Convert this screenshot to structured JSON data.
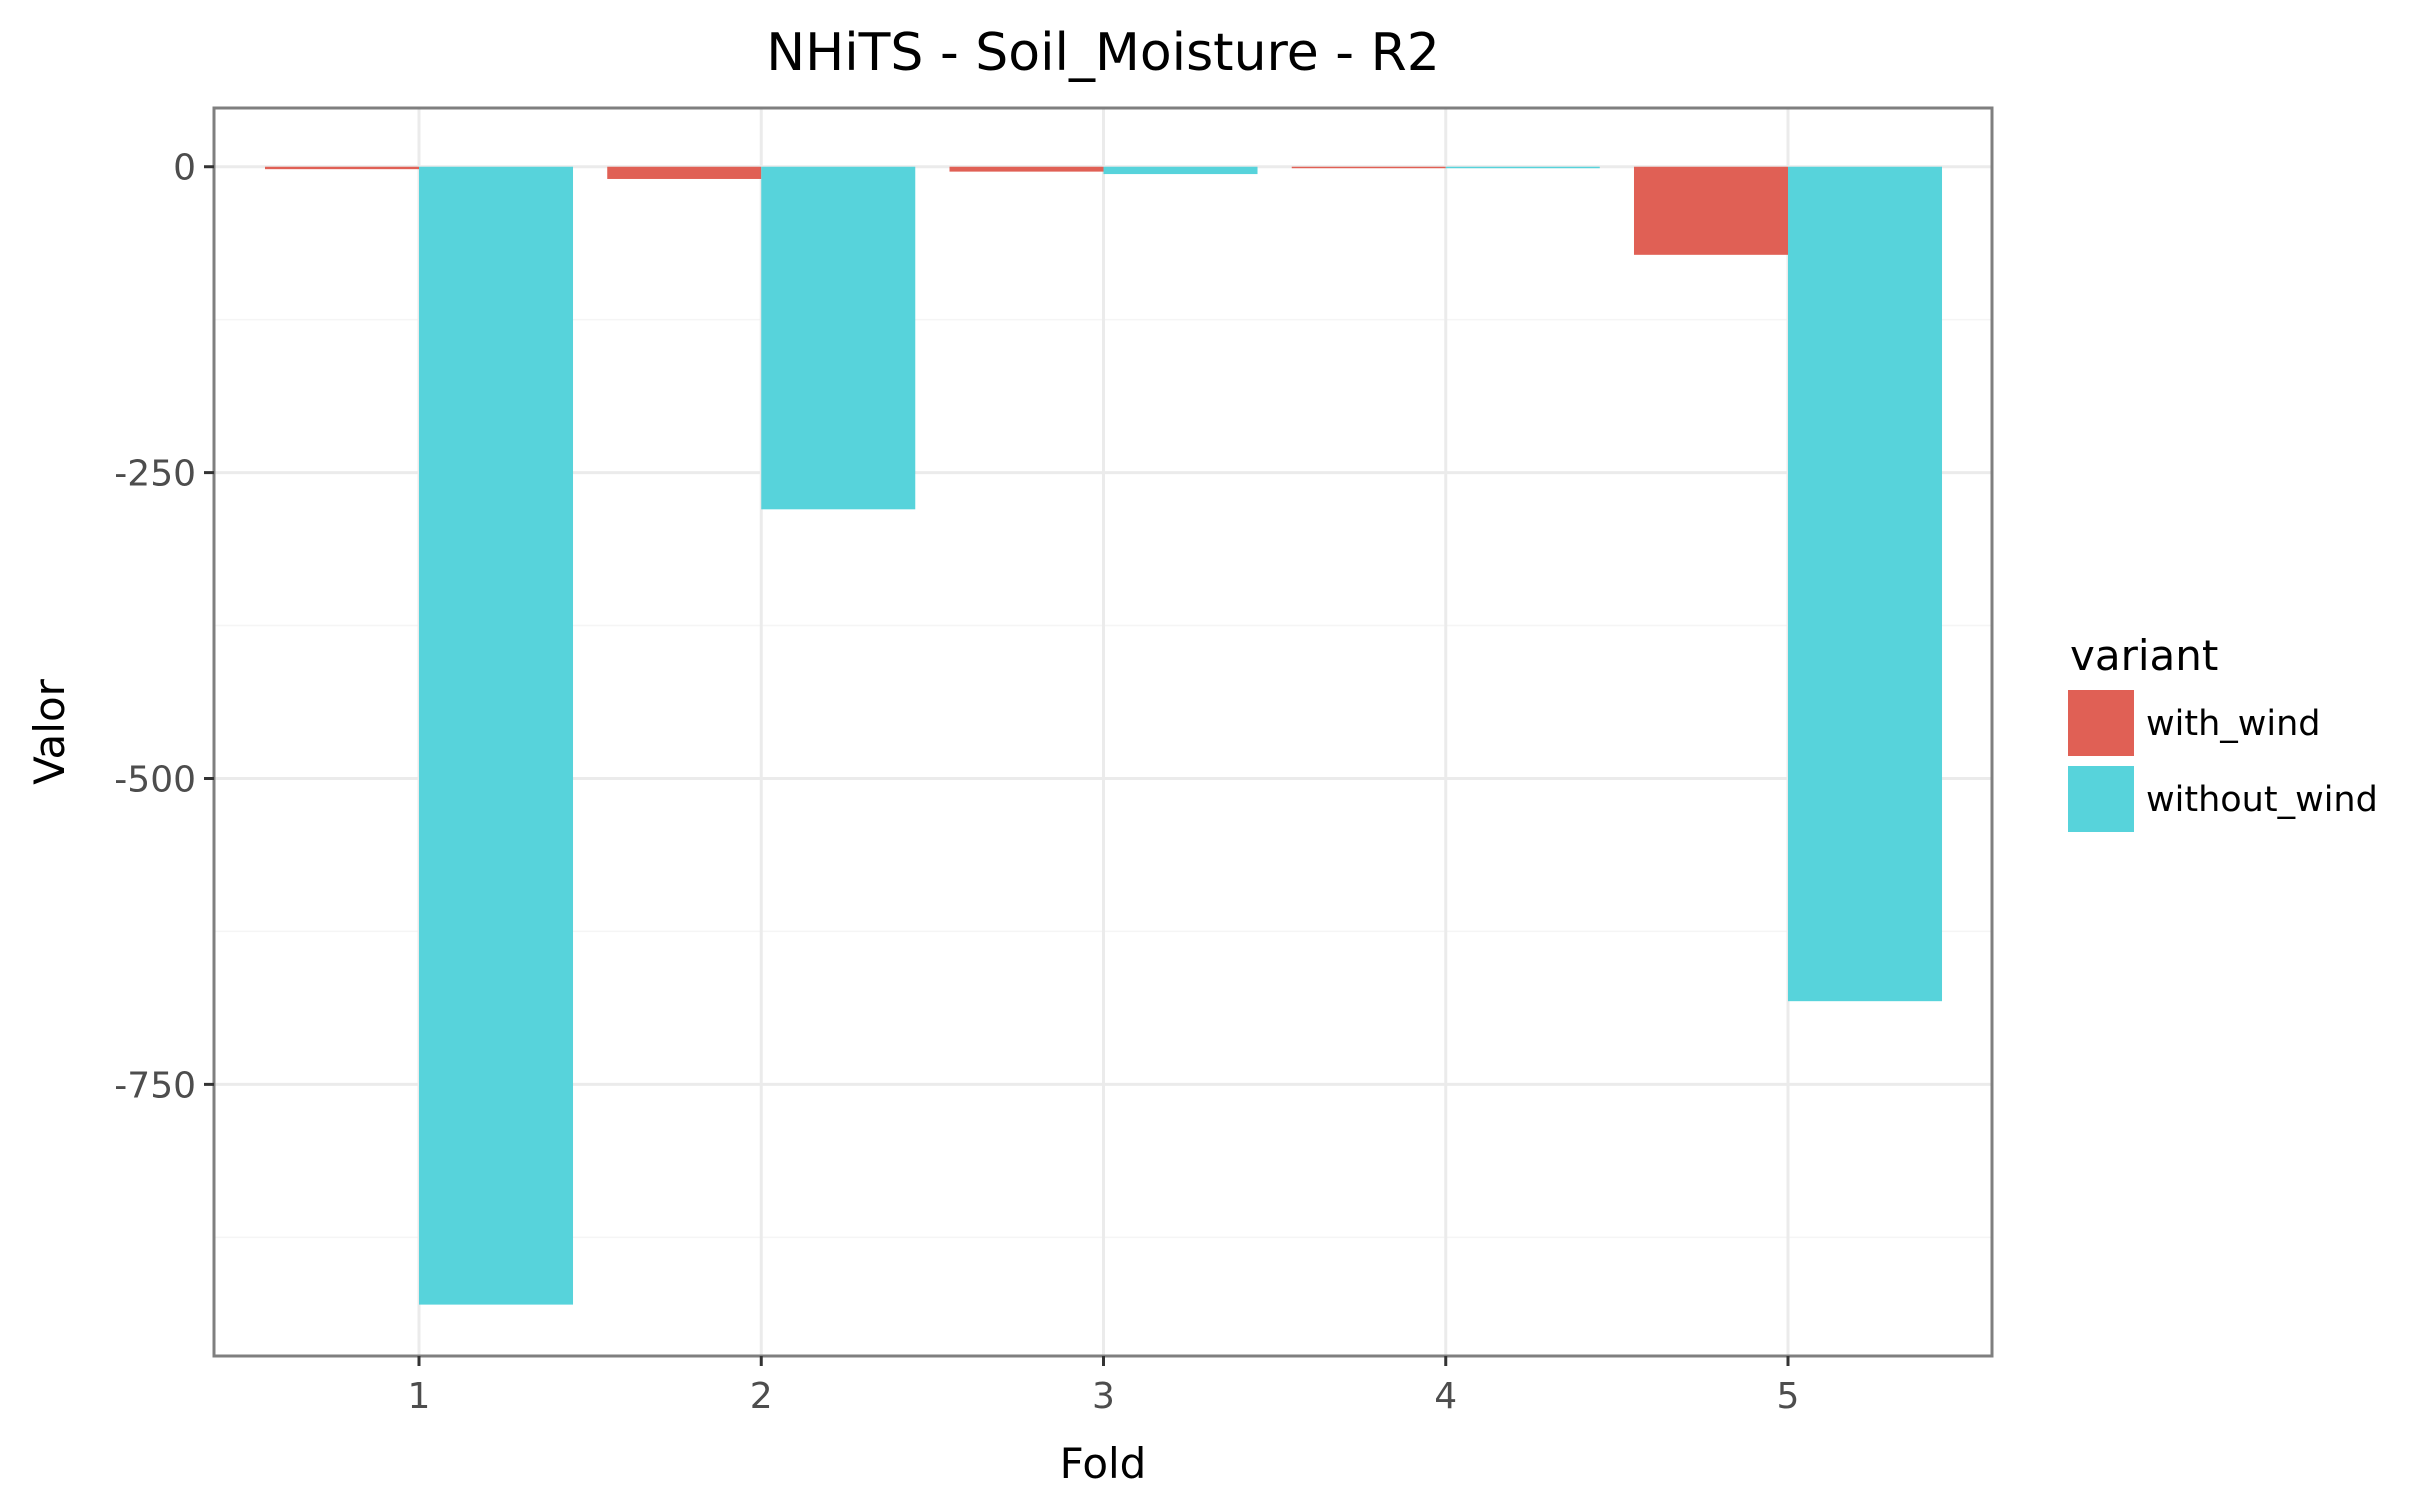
{
  "chart_data": {
    "type": "bar",
    "title": "NHiTS - Soil_Moisture - R2",
    "xlabel": "Fold",
    "ylabel": "Valor",
    "categories": [
      "1",
      "2",
      "3",
      "4",
      "5"
    ],
    "series": [
      {
        "name": "with_wind",
        "color": "#e06055",
        "values": [
          -2,
          -10,
          -4,
          -1,
          -72
        ]
      },
      {
        "name": "without_wind",
        "color": "#57d3db",
        "values": [
          -930,
          -280,
          -6,
          0,
          -682
        ]
      }
    ],
    "yticks": [
      0,
      -250,
      -500,
      -750
    ],
    "ytick_labels": [
      "0",
      "-250",
      "-500",
      "-750"
    ],
    "ylim": [
      -972,
      48
    ],
    "grid": true,
    "legend": {
      "title": "variant",
      "position": "right"
    }
  }
}
